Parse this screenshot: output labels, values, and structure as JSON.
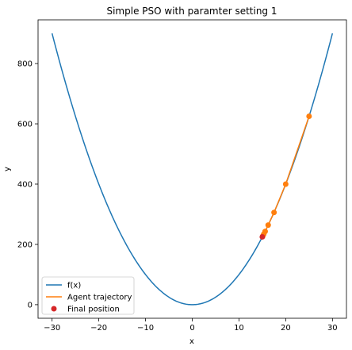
{
  "chart_data": {
    "type": "line",
    "title": "Simple PSO with paramter setting 1",
    "xlabel": "x",
    "ylabel": "y",
    "xlim": [
      -33,
      33
    ],
    "ylim": [
      -45,
      945
    ],
    "xticks": [
      -30,
      -20,
      -10,
      0,
      10,
      20,
      30
    ],
    "yticks": [
      0,
      200,
      400,
      600,
      800
    ],
    "grid": false,
    "legend_placement": "lower-left",
    "series": [
      {
        "name": "f(x)",
        "kind": "function",
        "expression": "x^2",
        "x_range": [
          -30,
          30
        ],
        "color": "#1f77b4"
      },
      {
        "name": "Agent trajectory",
        "kind": "line+markers",
        "color": "#ff7f0e",
        "x": [
          25.0,
          20.0,
          17.5,
          16.25,
          15.6,
          15.3,
          15.1
        ],
        "y": [
          625,
          400,
          306,
          264,
          243,
          234,
          228
        ]
      },
      {
        "name": "Final position",
        "kind": "scatter",
        "color": "#d62728",
        "x": [
          15.0
        ],
        "y": [
          225
        ]
      }
    ]
  }
}
